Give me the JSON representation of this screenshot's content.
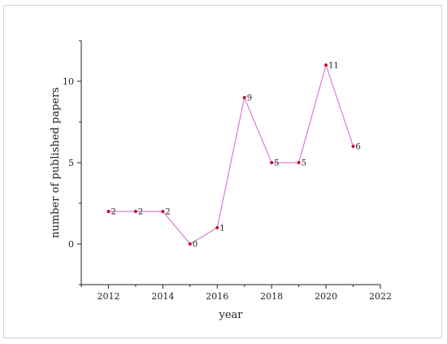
{
  "chart_data": {
    "type": "line",
    "title": "",
    "xlabel": "year",
    "ylabel": "number of published papers",
    "x": [
      2012,
      2013,
      2014,
      2015,
      2016,
      2017,
      2018,
      2019,
      2020,
      2021
    ],
    "series": [
      {
        "values": [
          2,
          2,
          2,
          0,
          1,
          9,
          5,
          5,
          11,
          6
        ]
      }
    ],
    "data_labels": [
      "2",
      "2",
      "2",
      "0",
      "1",
      "9",
      "5",
      "5",
      "11",
      "6"
    ],
    "xlim": [
      2011,
      2022
    ],
    "ylim": [
      -2.5,
      12.5
    ],
    "xticks": [
      "2012",
      "2014",
      "2016",
      "2018",
      "2020",
      "2022"
    ],
    "yticks": [
      "0",
      "5",
      "10"
    ],
    "grid": false,
    "legend": "none",
    "line_color": "#d77cd6",
    "marker_color": "#c8102e"
  }
}
